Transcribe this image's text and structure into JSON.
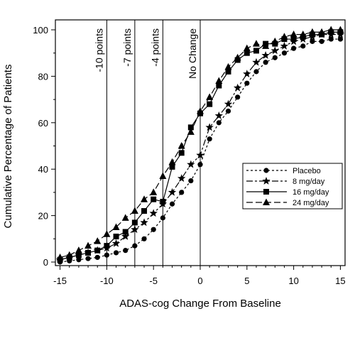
{
  "chart_data": {
    "type": "line",
    "title": "",
    "xlabel": "ADAS-cog Change From Baseline",
    "ylabel": "Cumulative Percentage of Patients",
    "xlim": [
      -15.5,
      15.5
    ],
    "ylim": [
      0,
      100
    ],
    "xticks": [
      -15,
      -10,
      -5,
      0,
      5,
      10,
      15
    ],
    "yticks": [
      0,
      20,
      40,
      60,
      80,
      100
    ],
    "grid": false,
    "legend_position": "right",
    "reference_lines": [
      {
        "x": -10,
        "label": "-10 points"
      },
      {
        "x": -7,
        "label": "-7 points"
      },
      {
        "x": -4,
        "label": "-4 points"
      },
      {
        "x": 0,
        "label": "No Change"
      }
    ],
    "series": [
      {
        "name": "Placebo",
        "line": "short-dash",
        "marker": "circle",
        "x": [
          -15,
          -14,
          -13,
          -12,
          -11,
          -10,
          -9,
          -8,
          -7,
          -6,
          -5,
          -4,
          -3,
          -2,
          -1,
          0,
          1,
          2,
          3,
          4,
          5,
          6,
          7,
          8,
          9,
          10,
          11,
          12,
          13,
          14,
          15
        ],
        "y": [
          0,
          0.5,
          1,
          1.5,
          2,
          3,
          4,
          5,
          7,
          10,
          14,
          19,
          25,
          30,
          35,
          42,
          53,
          60,
          65,
          71,
          77,
          82,
          86,
          88,
          90,
          92,
          93,
          95,
          95,
          96,
          96
        ]
      },
      {
        "name": "8 mg/day",
        "line": "long-short-dash",
        "marker": "star",
        "x": [
          -15,
          -14,
          -13,
          -12,
          -11,
          -10,
          -9,
          -8,
          -7,
          -6,
          -5,
          -4,
          -3,
          -2,
          -1,
          0,
          1,
          2,
          3,
          4,
          5,
          6,
          7,
          8,
          9,
          10,
          11,
          12,
          13,
          14,
          15
        ],
        "y": [
          1,
          2,
          3,
          4,
          5,
          6,
          8,
          11,
          14,
          17,
          21,
          25,
          30,
          36,
          42,
          46,
          58,
          63,
          68,
          75,
          81,
          86,
          89,
          91,
          93,
          95,
          96,
          97,
          98,
          98,
          98
        ]
      },
      {
        "name": "16 mg/day",
        "line": "solid",
        "marker": "square",
        "x": [
          -15,
          -14,
          -13,
          -12,
          -11,
          -10,
          -9,
          -8,
          -7,
          -6,
          -5,
          -4,
          -3,
          -2,
          -1,
          0,
          1,
          2,
          3,
          4,
          5,
          6,
          7,
          8,
          9,
          10,
          11,
          12,
          13,
          14,
          15
        ],
        "y": [
          1,
          2,
          3,
          4,
          5,
          7,
          11,
          13,
          17,
          22,
          27,
          26,
          41,
          47,
          58,
          64,
          68,
          76,
          82,
          87,
          90,
          91,
          94,
          94,
          96,
          96,
          97,
          98,
          98,
          99,
          99
        ]
      },
      {
        "name": "24 mg/day",
        "line": "long-dash",
        "marker": "triangle",
        "x": [
          -15,
          -14,
          -13,
          -12,
          -11,
          -10,
          -9,
          -8,
          -7,
          -6,
          -5,
          -4,
          -3,
          -2,
          -1,
          0,
          1,
          2,
          3,
          4,
          5,
          6,
          7,
          8,
          9,
          10,
          11,
          12,
          13,
          14,
          15
        ],
        "y": [
          2,
          3,
          5,
          7,
          9,
          12,
          15,
          19,
          22,
          27,
          30,
          37,
          43,
          50,
          56,
          65,
          71,
          78,
          84,
          88,
          92,
          94,
          93,
          95,
          97,
          98,
          98,
          99,
          99,
          100,
          100
        ]
      }
    ]
  }
}
